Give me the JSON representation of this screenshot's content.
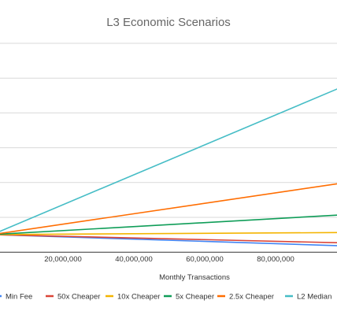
{
  "chart_data": {
    "type": "line",
    "title": "L3 Economic Scenarios",
    "xlabel": "Monthly Transactions",
    "ylabel": "",
    "x": [
      0,
      100000000
    ],
    "x_ticks": [
      20000000,
      40000000,
      60000000,
      80000000
    ],
    "x_tick_labels": [
      "20,000,000",
      "40,000,000",
      "60,000,000",
      "80,000,000"
    ],
    "y_range_fraction_note": "",
    "grid": "horizontal",
    "legend_position": "bottom",
    "series": [
      {
        "name": "Min Fee",
        "color": "#4285f4",
        "values": [
          0,
          -6.5
        ]
      },
      {
        "name": "50x Cheaper",
        "color": "#db4437",
        "values": [
          0,
          -4.8
        ]
      },
      {
        "name": "10x Cheaper",
        "color": "#f4b400",
        "values": [
          0,
          1.2
        ]
      },
      {
        "name": "5x Cheaper",
        "color": "#0f9d58",
        "values": [
          0,
          11.5
        ]
      },
      {
        "name": "2.5x Cheaper",
        "color": "#ff6d01",
        "values": [
          0,
          30
        ]
      },
      {
        "name": "L2 Median",
        "color": "#46bdc6",
        "values": [
          0,
          86
        ]
      }
    ],
    "ylim": [
      -10,
      110
    ]
  }
}
